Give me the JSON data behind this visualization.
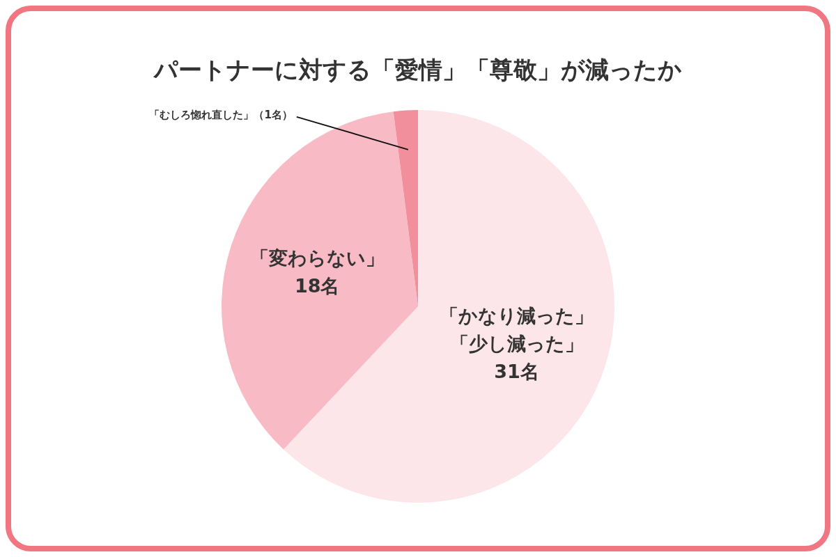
{
  "chart_data": {
    "type": "pie",
    "title": "パートナーに対する「愛情」「尊敬」が減ったか",
    "categories": [
      "「かなり減った」「少し減った」",
      "「変わらない」",
      "「むしろ惚れ直した」"
    ],
    "values": [
      31,
      18,
      1
    ],
    "value_labels": [
      "31名",
      "18名",
      "（1名）"
    ],
    "colors": [
      "#fde6ea",
      "#f8bac4",
      "#f28f9c"
    ],
    "legend": false
  }
}
